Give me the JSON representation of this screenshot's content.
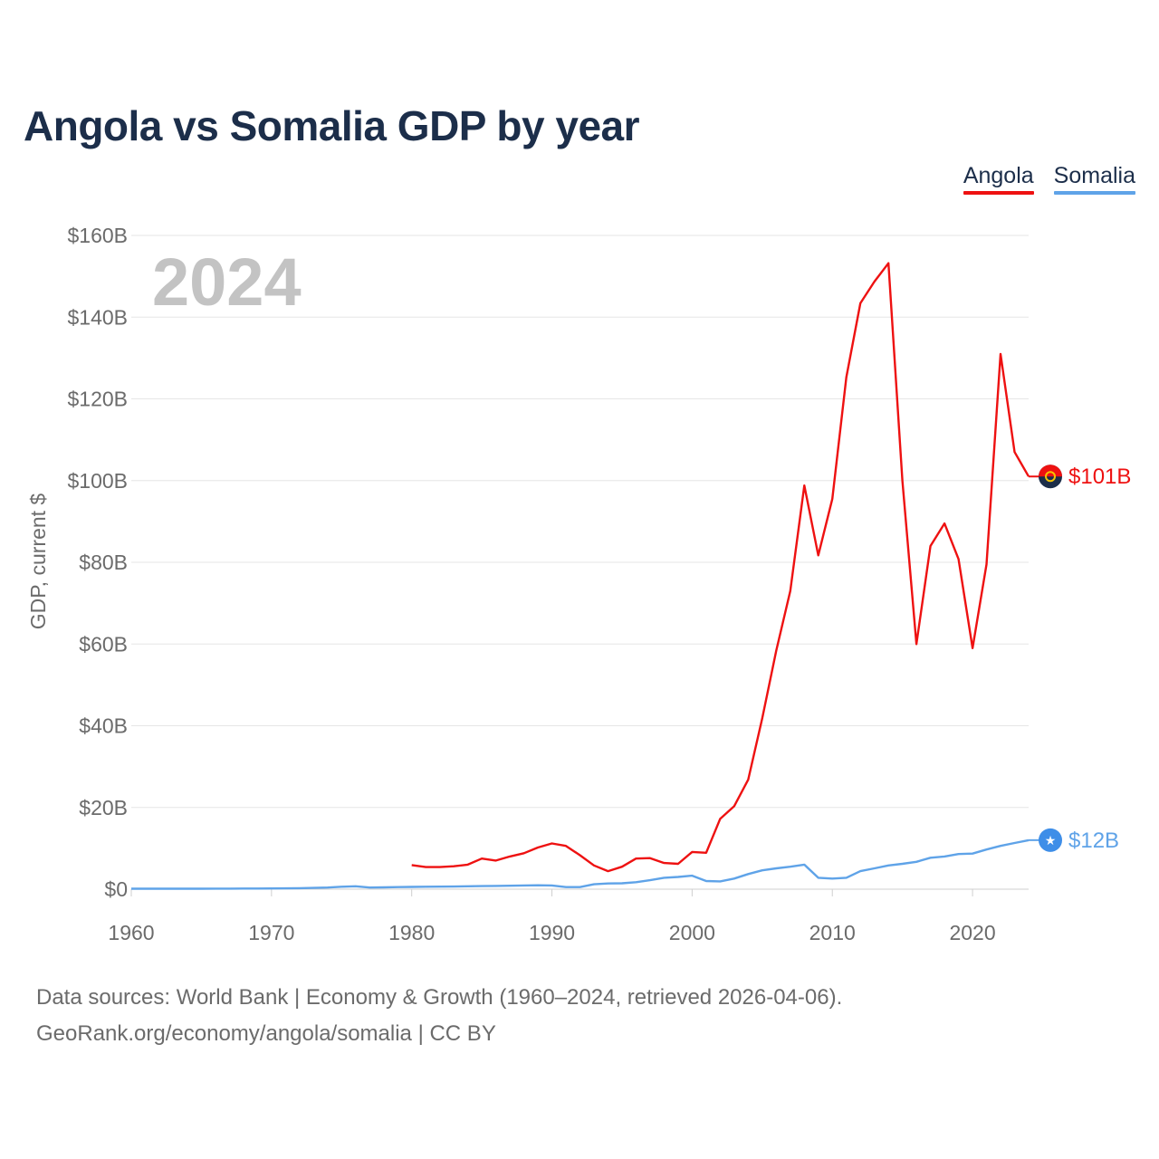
{
  "title": "Angola vs Somalia GDP by year",
  "legend": [
    {
      "label": "Angola",
      "color": "#ee1111"
    },
    {
      "label": "Somalia",
      "color": "#5fa3e8"
    }
  ],
  "footer": {
    "line1": "Data sources: World Bank | Economy & Growth (1960–2024, retrieved 2026-04-06).",
    "line2": "GeoRank.org/economy/angola/somalia | CC BY"
  },
  "chart_data": {
    "type": "line",
    "title": "Angola vs Somalia GDP by year",
    "year_label": "2024",
    "ylabel": "GDP, current $",
    "xlabel": "",
    "xlim": [
      1960,
      2024
    ],
    "ylim": [
      0,
      160
    ],
    "unit": "billion current US$",
    "x_ticks": [
      {
        "value": 1960,
        "label": "1960"
      },
      {
        "value": 1970,
        "label": "1970"
      },
      {
        "value": 1980,
        "label": "1980"
      },
      {
        "value": 1990,
        "label": "1990"
      },
      {
        "value": 2000,
        "label": "2000"
      },
      {
        "value": 2010,
        "label": "2010"
      },
      {
        "value": 2020,
        "label": "2020"
      }
    ],
    "y_ticks": [
      {
        "value": 0,
        "label": "$0"
      },
      {
        "value": 20,
        "label": "$20B"
      },
      {
        "value": 40,
        "label": "$40B"
      },
      {
        "value": 60,
        "label": "$60B"
      },
      {
        "value": 80,
        "label": "$80B"
      },
      {
        "value": 100,
        "label": "$100B"
      },
      {
        "value": 120,
        "label": "$120B"
      },
      {
        "value": 140,
        "label": "$140B"
      },
      {
        "value": 160,
        "label": "$160B"
      }
    ],
    "series": [
      {
        "name": "Angola",
        "color": "#ee1111",
        "end_label": "$101B",
        "end_icon": "angola-flag-icon",
        "x": [
          1980,
          1981,
          1982,
          1983,
          1984,
          1985,
          1986,
          1987,
          1988,
          1989,
          1990,
          1991,
          1992,
          1993,
          1994,
          1995,
          1996,
          1997,
          1998,
          1999,
          2000,
          2001,
          2002,
          2003,
          2004,
          2005,
          2006,
          2007,
          2008,
          2009,
          2010,
          2011,
          2012,
          2013,
          2014,
          2015,
          2016,
          2017,
          2018,
          2019,
          2020,
          2021,
          2022,
          2023,
          2024
        ],
        "values": [
          5.9,
          5.4,
          5.4,
          5.6,
          6.0,
          7.5,
          7.0,
          8.0,
          8.8,
          10.2,
          11.2,
          10.6,
          8.3,
          5.8,
          4.4,
          5.5,
          7.5,
          7.6,
          6.4,
          6.2,
          9.1,
          8.9,
          17.2,
          20.3,
          26.8,
          41.8,
          58.4,
          73.0,
          98.8,
          81.7,
          95.5,
          125.3,
          143.4,
          148.7,
          153.2,
          100.0,
          60.0,
          84.0,
          89.5,
          80.8,
          59.0,
          79.5,
          131.0,
          107.0,
          101.0
        ]
      },
      {
        "name": "Somalia",
        "color": "#5fa3e8",
        "end_label": "$12B",
        "end_icon": "somalia-flag-icon",
        "x": [
          1960,
          1961,
          1962,
          1963,
          1964,
          1965,
          1966,
          1967,
          1968,
          1969,
          1970,
          1971,
          1972,
          1973,
          1974,
          1975,
          1976,
          1977,
          1978,
          1979,
          1980,
          1981,
          1982,
          1983,
          1984,
          1985,
          1986,
          1987,
          1988,
          1989,
          1990,
          1991,
          1992,
          1993,
          1994,
          1995,
          1996,
          1997,
          1998,
          1999,
          2000,
          2001,
          2002,
          2003,
          2004,
          2005,
          2006,
          2007,
          2008,
          2009,
          2010,
          2011,
          2012,
          2013,
          2014,
          2015,
          2016,
          2017,
          2018,
          2019,
          2020,
          2021,
          2022,
          2023,
          2024
        ],
        "values": [
          0.1,
          0.1,
          0.1,
          0.1,
          0.1,
          0.12,
          0.13,
          0.14,
          0.15,
          0.16,
          0.17,
          0.2,
          0.25,
          0.3,
          0.4,
          0.6,
          0.7,
          0.4,
          0.45,
          0.5,
          0.55,
          0.6,
          0.62,
          0.65,
          0.7,
          0.75,
          0.8,
          0.85,
          0.9,
          0.95,
          0.9,
          0.5,
          0.5,
          1.2,
          1.4,
          1.45,
          1.7,
          2.2,
          2.8,
          3.0,
          3.3,
          2.0,
          1.9,
          2.6,
          3.7,
          4.6,
          5.1,
          5.5,
          6.0,
          2.8,
          2.6,
          2.8,
          4.4,
          5.1,
          5.8,
          6.2,
          6.7,
          7.7,
          8.0,
          8.6,
          8.7,
          9.7,
          10.6,
          11.3,
          12.0
        ]
      }
    ]
  }
}
